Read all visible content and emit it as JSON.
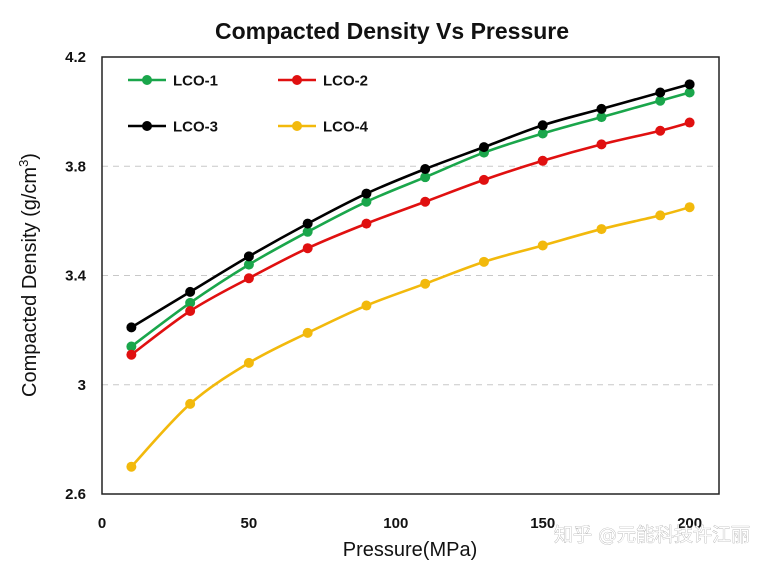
{
  "chart_data": {
    "type": "line",
    "title": "Compacted Density Vs Pressure",
    "xlabel": "Pressure(MPa)",
    "ylabel": "Compacted Density (g/cm",
    "ylabel_sup": "3",
    "ylabel_close": ")",
    "xlim": [
      0,
      210
    ],
    "ylim": [
      2.6,
      4.2
    ],
    "xticks": [
      "0",
      "50",
      "100",
      "150",
      "200"
    ],
    "yticks": [
      "2.6",
      "3",
      "3.4",
      "3.8",
      "4.2"
    ],
    "grid": "horizontal dashed",
    "legend_position": "top-left",
    "x": [
      10,
      30,
      50,
      70,
      90,
      110,
      130,
      150,
      170,
      190,
      200
    ],
    "series": [
      {
        "name": "LCO-1",
        "color": "#1aa64b",
        "values": [
          3.14,
          3.3,
          3.44,
          3.56,
          3.67,
          3.76,
          3.85,
          3.92,
          3.98,
          4.04,
          4.07
        ]
      },
      {
        "name": "LCO-2",
        "color": "#e01010",
        "values": [
          3.11,
          3.27,
          3.39,
          3.5,
          3.59,
          3.67,
          3.75,
          3.82,
          3.88,
          3.93,
          3.96
        ]
      },
      {
        "name": "LCO-3",
        "color": "#000000",
        "values": [
          3.21,
          3.34,
          3.47,
          3.59,
          3.7,
          3.79,
          3.87,
          3.95,
          4.01,
          4.07,
          4.1
        ]
      },
      {
        "name": "LCO-4",
        "color": "#f2b90c",
        "values": [
          2.7,
          2.93,
          3.08,
          3.19,
          3.29,
          3.37,
          3.45,
          3.51,
          3.57,
          3.62,
          3.65
        ]
      }
    ]
  },
  "watermark": "知乎 @元能科技许江丽"
}
